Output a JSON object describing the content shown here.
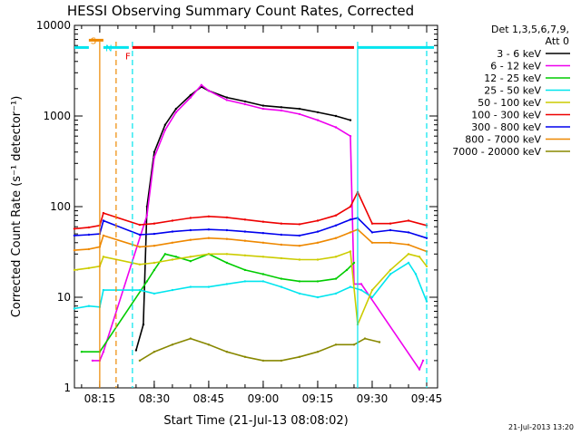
{
  "chart_data": {
    "type": "line",
    "title": "HESSI Observing Summary Count Rates, Corrected",
    "xlabel": "Start Time (21-Jul-13 08:08:02)",
    "ylabel": "Corrected Count Rate (s⁻¹ detector⁻¹)",
    "y_scale": "log",
    "ylim": [
      1,
      10000
    ],
    "xlim": [
      "08:08:02",
      "09:48:00"
    ],
    "x_ticks": [
      "08:15",
      "08:30",
      "08:45",
      "09:00",
      "09:15",
      "09:30",
      "09:45"
    ],
    "y_ticks": [
      "1",
      "10",
      "100",
      "1000",
      "10000"
    ],
    "footer": "21-Jul-2013 13:20",
    "legend": {
      "placement": "right",
      "header": [
        "Det 1,3,5,6,7,9,",
        "Att 0"
      ],
      "entries": [
        {
          "label": "3 - 6 keV",
          "color": "#000000"
        },
        {
          "label": "6 - 12 keV",
          "color": "#ee00ee"
        },
        {
          "label": "12 - 25 keV",
          "color": "#00cc00"
        },
        {
          "label": "25 - 50 keV",
          "color": "#00e5ee"
        },
        {
          "label": "50 - 100 keV",
          "color": "#cccc00"
        },
        {
          "label": "100 - 300 keV",
          "color": "#ee0000"
        },
        {
          "label": "300 - 800 keV",
          "color": "#0000ee"
        },
        {
          "label": "800 - 7000 keV",
          "color": "#ee8800"
        },
        {
          "label": "7000 - 20000 keV",
          "color": "#888800"
        }
      ]
    },
    "series": [
      {
        "name": "3 - 6 keV",
        "color": "#000000",
        "points": [
          [
            "08:25",
            2.6
          ],
          [
            "08:27",
            5
          ],
          [
            "08:28",
            100
          ],
          [
            "08:30",
            400
          ],
          [
            "08:33",
            800
          ],
          [
            "08:36",
            1200
          ],
          [
            "08:40",
            1700
          ],
          [
            "08:43",
            2100
          ],
          [
            "08:45",
            1900
          ],
          [
            "08:50",
            1600
          ],
          [
            "08:55",
            1450
          ],
          [
            "09:00",
            1300
          ],
          [
            "09:05",
            1250
          ],
          [
            "09:10",
            1200
          ],
          [
            "09:15",
            1100
          ],
          [
            "09:20",
            1000
          ],
          [
            "09:24",
            900
          ]
        ]
      },
      {
        "name": "6 - 12 keV",
        "color": "#ee00ee",
        "points": [
          [
            "08:13",
            2
          ],
          [
            "08:15",
            2
          ],
          [
            "08:16",
            2.5
          ],
          [
            "08:28",
            80
          ],
          [
            "08:30",
            350
          ],
          [
            "08:33",
            700
          ],
          [
            "08:36",
            1100
          ],
          [
            "08:40",
            1600
          ],
          [
            "08:43",
            2200
          ],
          [
            "08:45",
            1900
          ],
          [
            "08:50",
            1500
          ],
          [
            "08:55",
            1350
          ],
          [
            "09:00",
            1200
          ],
          [
            "09:05",
            1150
          ],
          [
            "09:10",
            1050
          ],
          [
            "09:15",
            900
          ],
          [
            "09:20",
            750
          ],
          [
            "09:24",
            600
          ],
          [
            "09:25",
            14
          ],
          [
            "09:27",
            14
          ],
          [
            "09:43",
            1.6
          ],
          [
            "09:44",
            2
          ]
        ]
      },
      {
        "name": "12 - 25 keV",
        "color": "#00cc00",
        "points": [
          [
            "08:10",
            2.5
          ],
          [
            "08:15",
            2.5
          ],
          [
            "08:28",
            15
          ],
          [
            "08:30",
            20
          ],
          [
            "08:33",
            30
          ],
          [
            "08:36",
            28
          ],
          [
            "08:40",
            25
          ],
          [
            "08:45",
            30
          ],
          [
            "08:50",
            24
          ],
          [
            "08:55",
            20
          ],
          [
            "09:00",
            18
          ],
          [
            "09:05",
            16
          ],
          [
            "09:10",
            15
          ],
          [
            "09:15",
            15
          ],
          [
            "09:20",
            16
          ],
          [
            "09:23",
            20
          ],
          [
            "09:25",
            24
          ]
        ]
      },
      {
        "name": "25 - 50 keV",
        "color": "#00e5ee",
        "points": [
          [
            "08:08",
            7.5
          ],
          [
            "08:12",
            8
          ],
          [
            "08:15",
            7.8
          ],
          [
            "08:16",
            12
          ],
          [
            "08:26",
            12
          ],
          [
            "08:30",
            11
          ],
          [
            "08:35",
            12
          ],
          [
            "08:40",
            13
          ],
          [
            "08:45",
            13
          ],
          [
            "08:50",
            14
          ],
          [
            "08:55",
            15
          ],
          [
            "09:00",
            15
          ],
          [
            "09:05",
            13
          ],
          [
            "09:10",
            11
          ],
          [
            "09:15",
            10
          ],
          [
            "09:20",
            11
          ],
          [
            "09:24",
            13
          ],
          [
            "09:27",
            12
          ],
          [
            "09:30",
            10
          ],
          [
            "09:35",
            18
          ],
          [
            "09:40",
            24
          ],
          [
            "09:42",
            18
          ],
          [
            "09:45",
            9
          ]
        ]
      },
      {
        "name": "50 - 100 keV",
        "color": "#cccc00",
        "points": [
          [
            "08:08",
            20
          ],
          [
            "08:12",
            21
          ],
          [
            "08:15",
            22
          ],
          [
            "08:16",
            28
          ],
          [
            "08:26",
            23
          ],
          [
            "08:30",
            24
          ],
          [
            "08:35",
            26
          ],
          [
            "08:40",
            28
          ],
          [
            "08:45",
            30
          ],
          [
            "08:50",
            30
          ],
          [
            "08:55",
            29
          ],
          [
            "09:00",
            28
          ],
          [
            "09:05",
            27
          ],
          [
            "09:10",
            26
          ],
          [
            "09:15",
            26
          ],
          [
            "09:20",
            28
          ],
          [
            "09:24",
            32
          ],
          [
            "09:26",
            5
          ],
          [
            "09:30",
            12
          ],
          [
            "09:35",
            20
          ],
          [
            "09:40",
            30
          ],
          [
            "09:43",
            28
          ],
          [
            "09:45",
            22
          ]
        ]
      },
      {
        "name": "100 - 300 keV",
        "color": "#ee0000",
        "points": [
          [
            "08:08",
            57
          ],
          [
            "08:12",
            59
          ],
          [
            "08:15",
            62
          ],
          [
            "08:16",
            85
          ],
          [
            "08:26",
            63
          ],
          [
            "08:30",
            65
          ],
          [
            "08:35",
            70
          ],
          [
            "08:40",
            75
          ],
          [
            "08:45",
            78
          ],
          [
            "08:50",
            76
          ],
          [
            "08:55",
            72
          ],
          [
            "09:00",
            68
          ],
          [
            "09:05",
            65
          ],
          [
            "09:10",
            64
          ],
          [
            "09:15",
            70
          ],
          [
            "09:20",
            80
          ],
          [
            "09:24",
            100
          ],
          [
            "09:26",
            145
          ],
          [
            "09:30",
            65
          ],
          [
            "09:35",
            65
          ],
          [
            "09:40",
            70
          ],
          [
            "09:45",
            62
          ]
        ]
      },
      {
        "name": "300 - 800 keV",
        "color": "#0000ee",
        "points": [
          [
            "08:08",
            48
          ],
          [
            "08:12",
            49
          ],
          [
            "08:15",
            50
          ],
          [
            "08:16",
            70
          ],
          [
            "08:26",
            49
          ],
          [
            "08:30",
            50
          ],
          [
            "08:35",
            53
          ],
          [
            "08:40",
            55
          ],
          [
            "08:45",
            56
          ],
          [
            "08:50",
            55
          ],
          [
            "08:55",
            53
          ],
          [
            "09:00",
            51
          ],
          [
            "09:05",
            49
          ],
          [
            "09:10",
            48
          ],
          [
            "09:15",
            53
          ],
          [
            "09:20",
            62
          ],
          [
            "09:24",
            72
          ],
          [
            "09:26",
            75
          ],
          [
            "09:30",
            52
          ],
          [
            "09:35",
            55
          ],
          [
            "09:40",
            52
          ],
          [
            "09:45",
            45
          ]
        ]
      },
      {
        "name": "800 - 7000 keV",
        "color": "#ee8800",
        "points": [
          [
            "08:08",
            33
          ],
          [
            "08:12",
            34
          ],
          [
            "08:15",
            36
          ],
          [
            "08:16",
            48
          ],
          [
            "08:26",
            36
          ],
          [
            "08:30",
            37
          ],
          [
            "08:35",
            40
          ],
          [
            "08:40",
            43
          ],
          [
            "08:45",
            45
          ],
          [
            "08:50",
            44
          ],
          [
            "08:55",
            42
          ],
          [
            "09:00",
            40
          ],
          [
            "09:05",
            38
          ],
          [
            "09:10",
            37
          ],
          [
            "09:15",
            40
          ],
          [
            "09:20",
            45
          ],
          [
            "09:24",
            52
          ],
          [
            "09:26",
            56
          ],
          [
            "09:30",
            40
          ],
          [
            "09:35",
            40
          ],
          [
            "09:40",
            38
          ],
          [
            "09:45",
            32
          ]
        ]
      },
      {
        "name": "7000 - 20000 keV",
        "color": "#888800",
        "points": [
          [
            "08:26",
            2
          ],
          [
            "08:30",
            2.5
          ],
          [
            "08:35",
            3
          ],
          [
            "08:40",
            3.5
          ],
          [
            "08:45",
            3
          ],
          [
            "08:50",
            2.5
          ],
          [
            "08:55",
            2.2
          ],
          [
            "09:00",
            2
          ],
          [
            "09:05",
            2
          ],
          [
            "09:10",
            2.2
          ],
          [
            "09:15",
            2.5
          ],
          [
            "09:20",
            3
          ],
          [
            "09:25",
            3
          ],
          [
            "09:28",
            3.5
          ],
          [
            "09:32",
            3.2
          ]
        ]
      }
    ],
    "state_bars": {
      "level": 5700,
      "segments": [
        {
          "label": "",
          "color": "#00e5ee",
          "from": "08:08:02",
          "to": "08:12:00"
        },
        {
          "label": "S",
          "color": "#ee8800",
          "from": "08:12:00",
          "to": "08:16:00"
        },
        {
          "label": "N",
          "color": "#00e5ee",
          "from": "08:16:00",
          "to": "08:23:00"
        },
        {
          "label": "F",
          "color": "#ee0000",
          "from": "08:24:00",
          "to": "09:25:00"
        },
        {
          "label": "",
          "color": "#00e5ee",
          "from": "09:26:00",
          "to": "09:47:00"
        }
      ]
    },
    "markers": [
      {
        "time": "08:15:00",
        "color": "#ee8800",
        "style": "solid"
      },
      {
        "time": "08:19:30",
        "color": "#ee8800",
        "style": "dashed"
      },
      {
        "time": "08:24:00",
        "color": "#00e5ee",
        "style": "dashed"
      },
      {
        "time": "09:26:00",
        "color": "#00e5ee",
        "style": "solid"
      },
      {
        "time": "09:45:00",
        "color": "#00e5ee",
        "style": "dashed"
      }
    ]
  }
}
